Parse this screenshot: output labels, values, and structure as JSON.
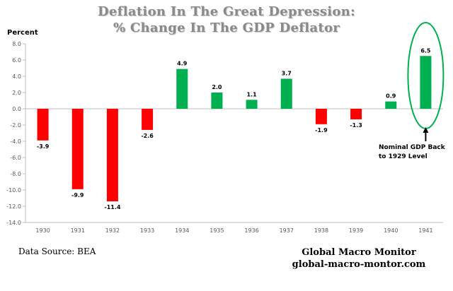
{
  "title_line1": "Deflation In The Great Depression:",
  "title_line2": "% Change In The GDP Deflator",
  "source": "Data Source: BEA",
  "brand_line1": "Global Macro Monitor",
  "brand_line2": "global-macro-montor.com",
  "colors": {
    "positive": "#00b050",
    "negative": "#ff0000",
    "highlight": "#00b050",
    "axis": "#bfbfbf",
    "tick_text": "#595959"
  },
  "chart_data": {
    "type": "bar",
    "title": "Deflation In The Great Depression: % Change In The GDP Deflator",
    "xlabel": "",
    "ylabel": "Percent",
    "categories": [
      "1930",
      "1931",
      "1932",
      "1933",
      "1934",
      "1935",
      "1936",
      "1937",
      "1938",
      "1939",
      "1940",
      "1941"
    ],
    "values": [
      -3.9,
      -9.9,
      -11.4,
      -2.6,
      4.9,
      2.0,
      1.1,
      3.7,
      -1.9,
      -1.3,
      0.9,
      6.5
    ],
    "value_labels": [
      "-3.9",
      "-9.9",
      "-11.4",
      "-2.6",
      "4.9",
      "2.0",
      "1.1",
      "3.7",
      "-1.9",
      "-1.3",
      "0.9",
      "6.5"
    ],
    "ylim": [
      -14,
      8
    ],
    "yticks": [
      8,
      6,
      4,
      2,
      0,
      -2,
      -4,
      -6,
      -8,
      -10,
      -12,
      -14
    ],
    "ytick_labels": [
      "8.0",
      "6.0",
      "4.0",
      "2.0",
      "0.0",
      "-2.0",
      "-4.0",
      "-6.0",
      "-8.0",
      "-10.0",
      "-12.0",
      "-14.0"
    ],
    "grid": false,
    "legend": "none",
    "annotation": {
      "text_line1": "Nominal GDP Back",
      "text_line2": "to 1929  Level",
      "category": "1941"
    }
  }
}
